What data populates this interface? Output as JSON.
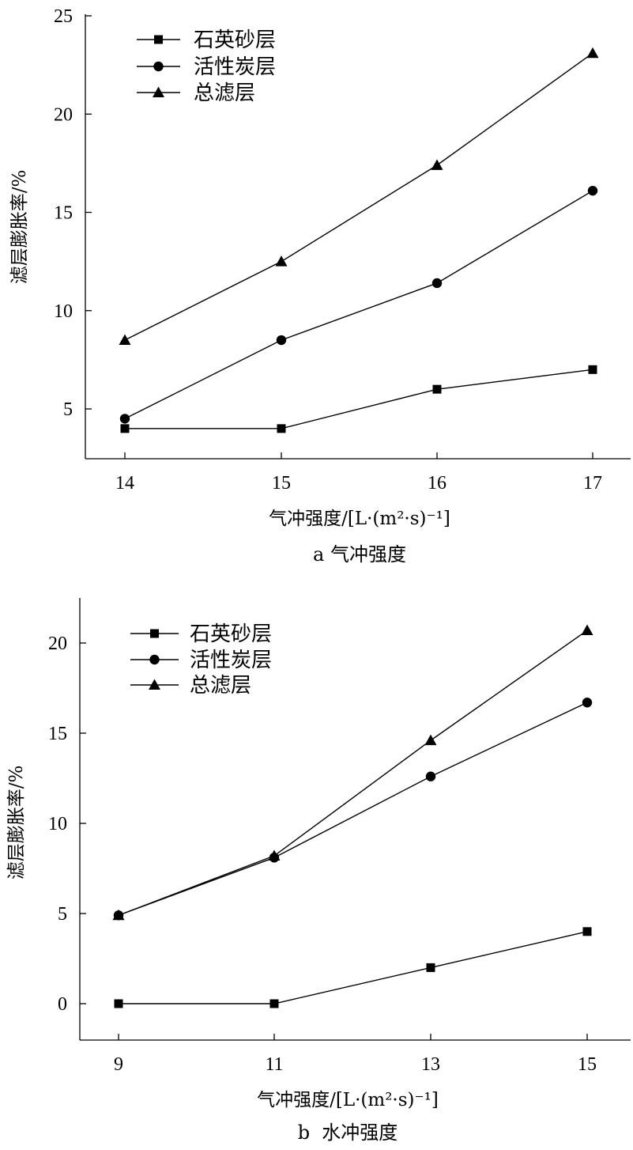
{
  "chart_data": [
    {
      "type": "line",
      "x": [
        14,
        15,
        16,
        17
      ],
      "xticks": [
        "14",
        "15",
        "16",
        "17"
      ],
      "ylim": [
        2.5,
        25
      ],
      "yticks": [
        5,
        10,
        15,
        20,
        25
      ],
      "xlabel": "气冲强度/[L·(m²·s)⁻¹]",
      "ylabel": "滤层膨胀率/%",
      "caption": "a 气冲强度",
      "grid": false,
      "legend_position": "top-left",
      "series": [
        {
          "name": "石英砂层",
          "marker": "square",
          "values": [
            4,
            4,
            6,
            7
          ]
        },
        {
          "name": "活性炭层",
          "marker": "circle",
          "values": [
            4.5,
            8.5,
            11.4,
            16.1
          ]
        },
        {
          "name": "总滤层",
          "marker": "triangle",
          "values": [
            8.5,
            12.5,
            17.4,
            23.1
          ]
        }
      ]
    },
    {
      "type": "line",
      "x": [
        9,
        11,
        13,
        15
      ],
      "xticks": [
        "9",
        "11",
        "13",
        "15"
      ],
      "ylim": [
        -2,
        22.5
      ],
      "yticks": [
        0,
        5,
        10,
        15,
        20
      ],
      "xlabel": "气冲强度/[L·(m²·s)⁻¹]",
      "ylabel": "滤层膨胀率/%",
      "caption": "b  水冲强度",
      "grid": false,
      "legend_position": "top-left",
      "series": [
        {
          "name": "石英砂层",
          "marker": "square",
          "values": [
            0,
            0,
            2,
            4
          ]
        },
        {
          "name": "活性炭层",
          "marker": "circle",
          "values": [
            4.9,
            8.1,
            12.6,
            16.7
          ]
        },
        {
          "name": "总滤层",
          "marker": "triangle",
          "values": [
            4.9,
            8.2,
            14.6,
            20.7
          ]
        }
      ]
    }
  ]
}
